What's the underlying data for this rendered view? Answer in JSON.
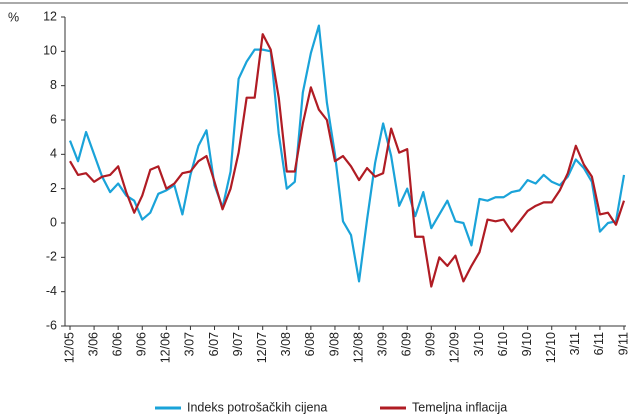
{
  "chart_data": {
    "type": "line",
    "y_label": "%",
    "categories": [
      "12/05",
      null,
      null,
      "3/06",
      null,
      null,
      "6/06",
      null,
      null,
      "9/06",
      null,
      null,
      "12/06",
      null,
      null,
      "3/07",
      null,
      null,
      "6/07",
      null,
      null,
      "9/07",
      null,
      null,
      "12/07",
      null,
      null,
      "3/08",
      null,
      null,
      "6/08",
      null,
      null,
      "9/08",
      null,
      null,
      "12/08",
      null,
      null,
      "3/09",
      null,
      null,
      "6/09",
      null,
      null,
      "9/09",
      null,
      null,
      "12/09",
      null,
      null,
      "3/10",
      null,
      null,
      "6/10",
      null,
      null,
      "9/10",
      null,
      null,
      "12/10",
      null,
      null,
      "3/11",
      null,
      null,
      "6/11",
      null,
      null,
      "9/11"
    ],
    "series": [
      {
        "name": "Indeks potrošačkih cijena",
        "color": "#1aa3d9",
        "values": [
          4.8,
          3.6,
          5.3,
          4.0,
          2.7,
          1.8,
          2.3,
          1.6,
          1.3,
          0.2,
          0.6,
          1.7,
          1.9,
          2.2,
          0.5,
          2.8,
          4.5,
          5.4,
          2.2,
          0.9,
          3.0,
          8.4,
          9.4,
          10.1,
          10.1,
          10.0,
          5.2,
          2.0,
          2.4,
          7.6,
          9.9,
          11.5,
          7.0,
          4.0,
          0.1,
          -0.7,
          -3.4,
          0.2,
          3.5,
          5.8,
          3.9,
          1.0,
          2.0,
          0.4,
          1.8,
          -0.3,
          0.5,
          1.3,
          0.1,
          0.0,
          -1.3,
          1.4,
          1.3,
          1.5,
          1.5,
          1.8,
          1.9,
          2.5,
          2.3,
          2.8,
          2.4,
          2.2,
          2.7,
          3.7,
          3.2,
          2.4,
          -0.5,
          0.0,
          0.1,
          2.8
        ]
      },
      {
        "name": "Temeljna inflacija",
        "color": "#b01c24",
        "values": [
          3.6,
          2.8,
          2.9,
          2.4,
          2.7,
          2.8,
          3.3,
          1.8,
          0.6,
          1.6,
          3.1,
          3.3,
          2.0,
          2.3,
          2.9,
          3.0,
          3.6,
          3.9,
          2.4,
          0.8,
          2.0,
          4.1,
          7.3,
          7.3,
          11.0,
          10.1,
          7.3,
          3.0,
          3.0,
          5.8,
          7.9,
          6.6,
          6.0,
          3.6,
          3.9,
          3.3,
          2.5,
          3.2,
          2.7,
          2.9,
          5.5,
          4.1,
          4.3,
          -0.8,
          -0.8,
          -3.7,
          -2.0,
          -2.5,
          -1.9,
          -3.4,
          -2.5,
          -1.7,
          0.2,
          0.1,
          0.2,
          -0.5,
          0.1,
          0.7,
          1.0,
          1.2,
          1.2,
          1.9,
          2.9,
          4.5,
          3.4,
          2.7,
          0.5,
          0.6,
          -0.1,
          1.3
        ]
      }
    ],
    "ylim": [
      -6,
      12
    ],
    "yticks": [
      -6,
      -4,
      -2,
      0,
      2,
      4,
      6,
      8,
      10,
      12
    ],
    "grid": false
  }
}
